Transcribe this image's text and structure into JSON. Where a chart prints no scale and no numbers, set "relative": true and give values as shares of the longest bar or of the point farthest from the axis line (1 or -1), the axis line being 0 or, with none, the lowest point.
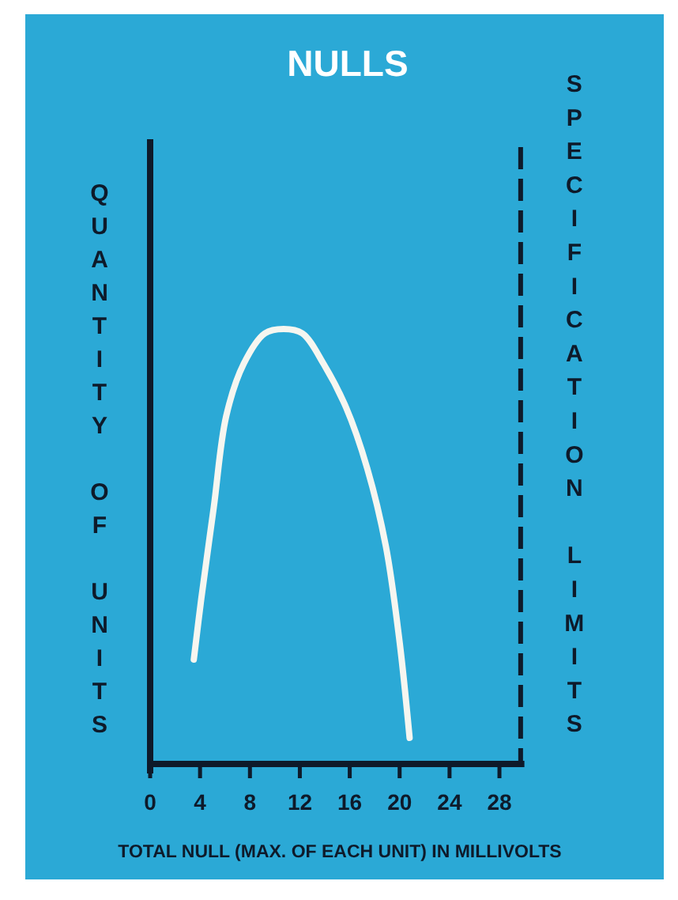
{
  "chart_data": {
    "type": "line",
    "title": "NULLS",
    "xlabel": "TOTAL NULL (MAX. OF EACH UNIT) IN MILLIVOLTS",
    "ylabel": "QUANTITY OF UNITS",
    "relative": true,
    "x": [
      3.5,
      4.1,
      5.1,
      6.1,
      7.5,
      9.2,
      10.7,
      12.2,
      13.9,
      15.7,
      17.4,
      18.9,
      20.0,
      20.8
    ],
    "values": [
      0.24,
      0.38,
      0.59,
      0.8,
      0.92,
      0.99,
      1,
      0.99,
      0.92,
      0.82,
      0.68,
      0.5,
      0.28,
      0.06
    ],
    "color": "#f6f6f0",
    "xlim": [
      0,
      30
    ],
    "xticks": [
      0,
      4,
      8,
      12,
      16,
      20,
      24,
      28
    ],
    "ref_lines": [
      {
        "axis": "x",
        "value": 29.7,
        "label": "SPECIFICATION LIMITS",
        "line_style": "dashed",
        "color": "#0e1a2a"
      }
    ]
  }
}
